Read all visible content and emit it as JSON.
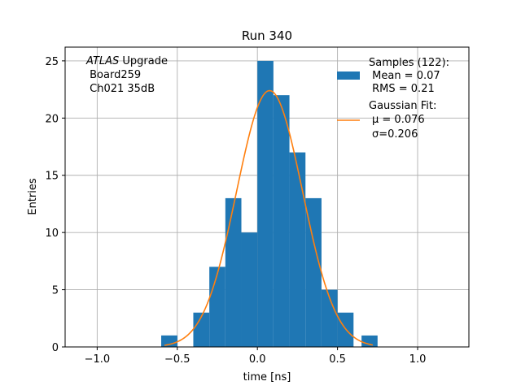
{
  "chart_data": {
    "type": "bar",
    "title": "Run 340",
    "xlabel": "time [ns]",
    "ylabel": "Entries",
    "xlim": [
      -1.2,
      1.32
    ],
    "ylim": [
      0,
      26.2
    ],
    "grid": true,
    "x_ticks": [
      {
        "value": -1.0,
        "label": "−1.0"
      },
      {
        "value": -0.5,
        "label": "−0.5"
      },
      {
        "value": 0.0,
        "label": "0.0"
      },
      {
        "value": 0.5,
        "label": "0.5"
      },
      {
        "value": 1.0,
        "label": "1.0"
      }
    ],
    "y_ticks": [
      {
        "value": 0,
        "label": "0"
      },
      {
        "value": 5,
        "label": "5"
      },
      {
        "value": 10,
        "label": "10"
      },
      {
        "value": 15,
        "label": "15"
      },
      {
        "value": 20,
        "label": "20"
      },
      {
        "value": 25,
        "label": "25"
      }
    ],
    "histogram": {
      "color": "#1f77b4",
      "bin_edges": [
        -0.6,
        -0.5,
        -0.4,
        -0.3,
        -0.2,
        -0.1,
        0.0,
        0.1,
        0.2,
        0.3,
        0.4,
        0.5,
        0.6,
        0.7
      ],
      "counts": [
        1,
        0,
        3,
        7,
        13,
        10,
        25,
        22,
        17,
        13,
        5,
        3,
        0
      ],
      "extra_bins": [
        {
          "x0": -0.6,
          "x1": -0.5,
          "count": 1
        },
        {
          "x0": 0.65,
          "x1": 0.75,
          "count": 1
        }
      ]
    },
    "fit": {
      "color": "#ff7f0e",
      "mu": 0.076,
      "sigma": 0.206,
      "amplitude": 22.4,
      "x_range": [
        -0.58,
        0.72
      ]
    },
    "legend": {
      "placement": "top-right",
      "samples_lines": [
        "Samples (122):",
        " Mean = 0.07",
        " RMS = 0.21"
      ],
      "fit_lines": [
        "Gaussian Fit:",
        "μ = 0.076",
        "σ=0.206"
      ]
    },
    "annotation": {
      "placement": "top-left",
      "atlas": "ATLAS",
      "upgrade": " Upgrade",
      "line2": " Board259",
      "line3": " Ch021 35dB"
    }
  }
}
